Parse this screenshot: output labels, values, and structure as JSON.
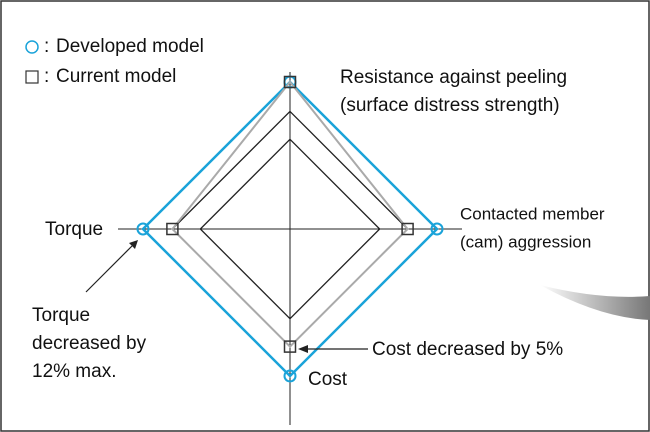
{
  "chart_data": {
    "type": "radar",
    "categories": [
      [
        "Resistance against peeling",
        "(surface distress strength)"
      ],
      [
        "Contacted member",
        "(cam) aggression"
      ],
      [
        "Cost"
      ],
      [
        "Torque"
      ]
    ],
    "rlim": [
      0,
      100
    ],
    "legend_separator": ":",
    "series": [
      {
        "name": "Developed model",
        "color": "#1aa3d9",
        "marker": "circle",
        "values": [
          100,
          100,
          100,
          100
        ]
      },
      {
        "name": "Current model",
        "color": "#aaaaaa",
        "marker": "square",
        "values": [
          100,
          80,
          80,
          80
        ]
      }
    ],
    "annotations": [
      [
        "Cost decreased by 5%"
      ],
      [
        "Torque",
        "decreased by",
        "12% max."
      ]
    ]
  }
}
